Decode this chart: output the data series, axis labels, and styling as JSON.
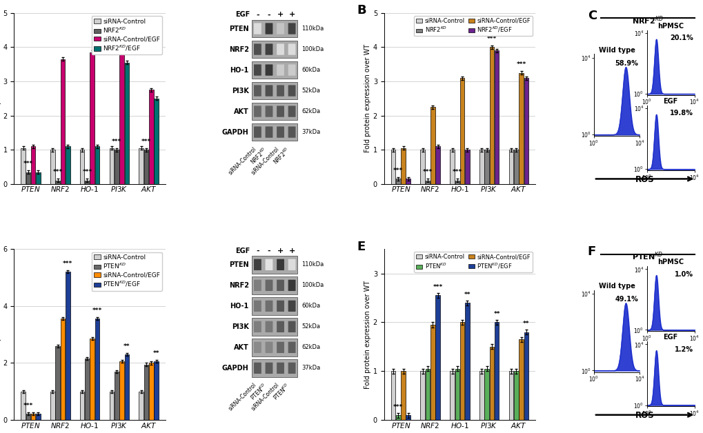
{
  "panel_A": {
    "categories": [
      "PTEN",
      "NRF2",
      "HO-1",
      "PI3K",
      "AKT"
    ],
    "series": {
      "siRNA-Control": [
        1.05,
        1.0,
        1.0,
        1.05,
        1.05
      ],
      "NRF2KD": [
        0.35,
        0.1,
        0.1,
        1.0,
        1.0
      ],
      "siRNA-Control/EGF": [
        1.1,
        3.65,
        3.85,
        3.85,
        2.75
      ],
      "NRF2KD/EGF": [
        0.35,
        1.1,
        1.1,
        3.55,
        2.5
      ]
    },
    "colors": [
      "#d0d0d0",
      "#606060",
      "#c8006e",
      "#007070"
    ],
    "ylim": [
      0,
      5
    ],
    "yticks": [
      0,
      1,
      2,
      3,
      4,
      5
    ],
    "ylabel": "Fold mRNA expression over WT",
    "stars_cat": [
      "PTEN",
      "NRF2",
      "HO-1",
      "PI3K",
      "AKT"
    ],
    "stars_val": [
      "***",
      "***",
      "***",
      "***",
      "***"
    ],
    "stars_series_idx": [
      1,
      1,
      1,
      1,
      1
    ],
    "legend": [
      "siRNA-Control",
      "NRF2$^{KD}$",
      "siRNA-Control/EGF",
      "NRF2$^{KD}$/EGF"
    ]
  },
  "panel_B": {
    "categories": [
      "PTEN",
      "NRF2",
      "HO-1",
      "PI3K",
      "AKT"
    ],
    "series": {
      "siRNA-Control": [
        1.0,
        1.0,
        1.0,
        1.0,
        1.0
      ],
      "NRF2KD": [
        0.15,
        0.1,
        0.1,
        1.0,
        1.0
      ],
      "siRNA-Control/EGF": [
        1.05,
        2.25,
        3.1,
        4.0,
        3.25
      ],
      "NRF2KD/EGF": [
        0.15,
        1.1,
        1.0,
        3.9,
        3.1
      ]
    },
    "colors": [
      "#d0d0d0",
      "#808080",
      "#c8821e",
      "#6b238e"
    ],
    "ylim": [
      0,
      5
    ],
    "yticks": [
      0,
      1,
      2,
      3,
      4,
      5
    ],
    "ylabel": "Fold protein expression over WT",
    "stars_cat": [
      "PTEN",
      "NRF2",
      "HO-1",
      "PI3K",
      "AKT"
    ],
    "stars_val": [
      "***",
      "***",
      "***",
      "***",
      "***"
    ],
    "stars_series_idx": [
      1,
      1,
      1,
      2,
      2
    ],
    "legend_col1": [
      "siRNA-Control",
      "siRNA-Control/EGF"
    ],
    "legend_col2": [
      "NRF2$^{KD}$",
      "NRF2$^{KD}$/EGF"
    ],
    "legend": [
      "siRNA-Control",
      "NRF2$^{KD}$",
      "siRNA-Control/EGF",
      "NRF2$^{KD}$/EGF"
    ]
  },
  "panel_D": {
    "categories": [
      "PTEN",
      "NRF2",
      "HO-1",
      "PI3K",
      "AKT"
    ],
    "series": {
      "siRNA-Control": [
        1.0,
        1.0,
        1.0,
        1.0,
        1.0
      ],
      "PTENKD": [
        0.22,
        2.6,
        2.15,
        1.7,
        1.95
      ],
      "siRNA-Control/EGF": [
        0.22,
        3.55,
        2.85,
        2.05,
        2.0
      ],
      "PTENKD/EGF": [
        0.22,
        5.2,
        3.55,
        2.3,
        2.05
      ]
    },
    "colors": [
      "#d0d0d0",
      "#696969",
      "#ff8c00",
      "#1e3f96"
    ],
    "ylim": [
      0,
      6
    ],
    "yticks": [
      0,
      2,
      4,
      6
    ],
    "ylabel": "Fold mRNA expression over WT",
    "stars_cat": [
      "PTEN",
      "NRF2",
      "HO-1",
      "PI3K",
      "AKT"
    ],
    "stars_val": [
      "***",
      "***",
      "***",
      "**",
      "**"
    ],
    "stars_series_idx": [
      1,
      3,
      3,
      3,
      3
    ],
    "legend": [
      "siRNA-Control",
      "PTEN$^{KD}$",
      "siRNA-Control/EGF",
      "PTEN$^{KD}$/EGF"
    ]
  },
  "panel_E": {
    "categories": [
      "PTEN",
      "NRF2",
      "HO-1",
      "PI3K",
      "AKT"
    ],
    "series": {
      "siRNA-Control": [
        1.0,
        1.0,
        1.0,
        1.0,
        1.0
      ],
      "PTENKD": [
        0.1,
        1.05,
        1.05,
        1.05,
        1.0
      ],
      "siRNA-Control/EGF": [
        1.0,
        1.95,
        2.0,
        1.5,
        1.65
      ],
      "PTENKD/EGF": [
        0.1,
        2.55,
        2.4,
        2.0,
        1.8
      ]
    },
    "colors": [
      "#d0d0d0",
      "#5aaf5a",
      "#c8821e",
      "#1e3f96"
    ],
    "ylim": [
      0,
      3.5
    ],
    "yticks": [
      0,
      1,
      2,
      3
    ],
    "ylabel": "Fold protein expression over WT",
    "stars_cat": [
      "PTEN",
      "NRF2",
      "HO-1",
      "PI3K",
      "AKT"
    ],
    "stars_val": [
      "***",
      "***",
      "**",
      "**",
      "**"
    ],
    "stars_series_idx": [
      1,
      3,
      3,
      3,
      3
    ],
    "legend": [
      "siRNA-Control",
      "PTEN$^{KD}$",
      "siRNA-Control/EGF",
      "PTEN$^{KD}$/EGF"
    ]
  },
  "wb_labels": [
    "PTEN",
    "NRF2",
    "HO-1",
    "PI3K",
    "AKT",
    "GAPDH"
  ],
  "wb_kdas": [
    "110kDa",
    "100kDa",
    "60kDa",
    "52kDa",
    "62kDa",
    "37kDa"
  ],
  "wb_egf": [
    "-",
    "-",
    "+",
    "+"
  ],
  "panel_C_title": "C",
  "panel_C_subtitle": "NRF2$^{KD}$",
  "panel_C_wildtype_pct": "58.9%",
  "panel_C_hpmsc_pct": "20.1%",
  "panel_C_egf_pct": "19.8%",
  "panel_F_title": "F",
  "panel_F_subtitle": "PTEN$^{KD}$",
  "panel_F_wildtype_pct": "49.1%",
  "panel_F_hpmsc_pct": "1.0%",
  "panel_F_egf_pct": "1.2%",
  "bar_width": 0.17
}
